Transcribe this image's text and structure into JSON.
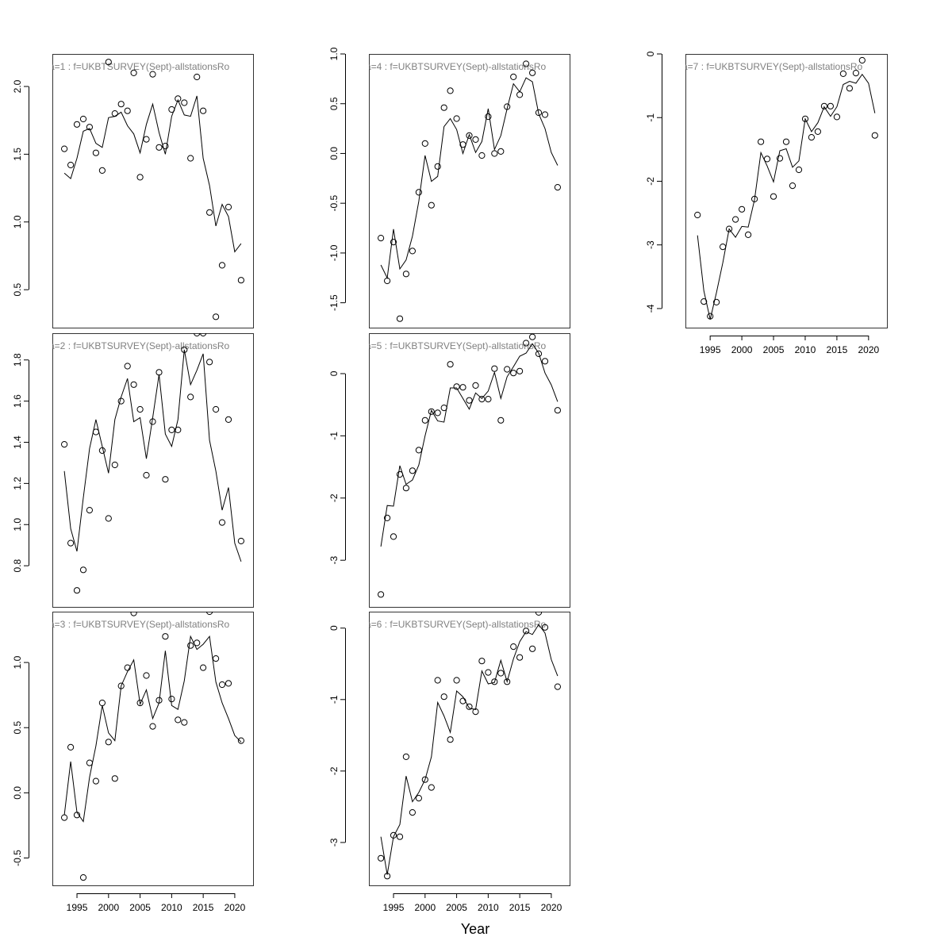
{
  "figure": {
    "xlabel": "Year"
  },
  "chart_data": [
    {
      "type": "scatter",
      "title": "a=1  :  f=UKBTSURVEY(Sept)-allstationsRo",
      "xlim": [
        1991.1,
        2022.9
      ],
      "ylim": [
        0.22,
        2.24
      ],
      "yticks": [
        0.5,
        1.0,
        1.5,
        2.0
      ],
      "yticklabels": [
        "0.5",
        "1.0",
        "1.5",
        "2.0"
      ],
      "xticks": [],
      "xticklabels": [],
      "years": [
        1993,
        1994,
        1995,
        1996,
        1997,
        1998,
        1999,
        2000,
        2001,
        2002,
        2003,
        2004,
        2005,
        2006,
        2007,
        2008,
        2009,
        2010,
        2011,
        2012,
        2013,
        2014,
        2015,
        2016,
        2017,
        2018,
        2019,
        2020,
        2021
      ],
      "series": [
        {
          "kind": "points",
          "values": [
            1.54,
            1.42,
            1.72,
            1.76,
            1.7,
            1.51,
            1.38,
            2.18,
            1.8,
            1.87,
            1.82,
            2.1,
            1.33,
            1.61,
            2.09,
            1.55,
            1.56,
            1.83,
            1.91,
            1.88,
            1.47,
            2.07,
            1.82,
            1.07,
            0.3,
            0.68,
            1.11,
            null,
            0.57
          ]
        },
        {
          "kind": "line",
          "values": [
            1.36,
            1.32,
            1.47,
            1.67,
            1.69,
            1.58,
            1.55,
            1.77,
            1.78,
            1.81,
            1.71,
            1.65,
            1.51,
            1.72,
            1.87,
            1.66,
            1.5,
            1.78,
            1.9,
            1.79,
            1.78,
            1.93,
            1.47,
            1.27,
            0.97,
            1.13,
            1.04,
            0.78,
            0.84
          ]
        }
      ]
    },
    {
      "type": "scatter",
      "title": "a=2  :  f=UKBTSURVEY(Sept)-allstationsRo",
      "xlim": [
        1991.1,
        2022.9
      ],
      "ylim": [
        0.6,
        1.93
      ],
      "yticks": [
        0.8,
        1.0,
        1.2,
        1.4,
        1.6,
        1.8
      ],
      "yticklabels": [
        "0.8",
        "1.0",
        "1.2",
        "1.4",
        "1.6",
        "1.8"
      ],
      "xticks": [],
      "xticklabels": [],
      "years": [
        1993,
        1994,
        1995,
        1996,
        1997,
        1998,
        1999,
        2000,
        2001,
        2002,
        2003,
        2004,
        2005,
        2006,
        2007,
        2008,
        2009,
        2010,
        2011,
        2012,
        2013,
        2014,
        2015,
        2016,
        2017,
        2018,
        2019,
        2020,
        2021
      ],
      "series": [
        {
          "kind": "points",
          "values": [
            1.39,
            0.91,
            0.68,
            0.78,
            1.07,
            1.45,
            1.36,
            1.03,
            1.29,
            1.6,
            1.77,
            1.68,
            1.56,
            1.24,
            1.5,
            1.74,
            1.22,
            1.46,
            1.46,
            1.85,
            1.62,
            1.93,
            1.93,
            1.79,
            1.56,
            1.01,
            1.51,
            null,
            0.92
          ]
        },
        {
          "kind": "line",
          "values": [
            1.26,
            0.98,
            0.87,
            1.13,
            1.37,
            1.51,
            1.38,
            1.25,
            1.51,
            1.62,
            1.71,
            1.5,
            1.52,
            1.32,
            1.52,
            1.73,
            1.44,
            1.38,
            1.51,
            1.85,
            1.68,
            1.75,
            1.83,
            1.41,
            1.26,
            1.07,
            1.18,
            0.91,
            0.82
          ]
        }
      ]
    },
    {
      "type": "scatter",
      "title": "a=3  :  f=UKBTSURVEY(Sept)-allstationsRo",
      "xlim": [
        1991.1,
        2022.9
      ],
      "ylim": [
        -0.71,
        1.39
      ],
      "yticks": [
        -0.5,
        0.0,
        0.5,
        1.0
      ],
      "yticklabels": [
        "-0.5",
        "0.0",
        "0.5",
        "1.0"
      ],
      "xticks": [
        1995,
        2000,
        2005,
        2010,
        2015,
        2020
      ],
      "xticklabels": [
        "1995",
        "2000",
        "2005",
        "2010",
        "2015",
        "2020"
      ],
      "years": [
        1993,
        1994,
        1995,
        1996,
        1997,
        1998,
        1999,
        2000,
        2001,
        2002,
        2003,
        2004,
        2005,
        2006,
        2007,
        2008,
        2009,
        2010,
        2011,
        2012,
        2013,
        2014,
        2015,
        2016,
        2017,
        2018,
        2019,
        2020,
        2021
      ],
      "series": [
        {
          "kind": "points",
          "values": [
            -0.19,
            0.35,
            -0.17,
            -0.65,
            0.23,
            0.09,
            0.69,
            0.39,
            0.11,
            0.82,
            0.96,
            1.38,
            0.69,
            0.9,
            0.51,
            0.71,
            1.2,
            0.72,
            0.56,
            0.54,
            1.13,
            1.15,
            0.96,
            1.39,
            1.03,
            0.83,
            0.84,
            null,
            0.4
          ]
        },
        {
          "kind": "line",
          "values": [
            -0.17,
            0.24,
            -0.15,
            -0.22,
            0.12,
            0.36,
            0.67,
            0.46,
            0.4,
            0.82,
            0.93,
            1.02,
            0.68,
            0.79,
            0.57,
            0.69,
            1.09,
            0.67,
            0.64,
            0.86,
            1.2,
            1.1,
            1.14,
            1.2,
            0.85,
            0.69,
            0.57,
            0.44,
            0.39
          ]
        }
      ]
    },
    {
      "type": "scatter",
      "title": "a=4  :  f=UKBTSURVEY(Sept)-allstationsRo",
      "xlim": [
        1991.1,
        2022.9
      ],
      "ylim": [
        -1.75,
        1.0
      ],
      "yticks": [
        -1.5,
        -1.0,
        -0.5,
        0.0,
        0.5,
        1.0
      ],
      "yticklabels": [
        "-1.5",
        "-1.0",
        "-0.5",
        "0.0",
        "0.5",
        "1.0"
      ],
      "xticks": [],
      "xticklabels": [],
      "years": [
        1993,
        1994,
        1995,
        1996,
        1997,
        1998,
        1999,
        2000,
        2001,
        2002,
        2003,
        2004,
        2005,
        2006,
        2007,
        2008,
        2009,
        2010,
        2011,
        2012,
        2013,
        2014,
        2015,
        2016,
        2017,
        2018,
        2019,
        2020,
        2021
      ],
      "series": [
        {
          "kind": "points",
          "values": [
            -0.85,
            -1.28,
            -0.89,
            -1.66,
            -1.21,
            -0.98,
            -0.39,
            0.1,
            -0.52,
            -0.13,
            0.46,
            0.63,
            0.35,
            0.09,
            0.18,
            0.14,
            -0.02,
            0.37,
            0.0,
            0.02,
            0.47,
            0.77,
            0.59,
            0.9,
            0.81,
            0.41,
            0.39,
            null,
            -0.34
          ]
        },
        {
          "kind": "line",
          "values": [
            -1.12,
            -1.25,
            -0.76,
            -1.16,
            -1.07,
            -0.83,
            -0.48,
            -0.02,
            -0.28,
            -0.23,
            0.27,
            0.35,
            0.24,
            0.0,
            0.19,
            0.01,
            0.12,
            0.45,
            0.04,
            0.18,
            0.45,
            0.7,
            0.62,
            0.76,
            0.72,
            0.4,
            0.25,
            0.01,
            -0.12
          ]
        }
      ]
    },
    {
      "type": "scatter",
      "title": "a=5  :  f=UKBTSURVEY(Sept)-allstationsRo",
      "xlim": [
        1991.1,
        2022.9
      ],
      "ylim": [
        -3.75,
        0.65
      ],
      "yticks": [
        -3,
        -2,
        -1,
        0
      ],
      "yticklabels": [
        "-3",
        "-2",
        "-1",
        "0"
      ],
      "xticks": [],
      "xticklabels": [],
      "years": [
        1993,
        1994,
        1995,
        1996,
        1997,
        1998,
        1999,
        2000,
        2001,
        2002,
        2003,
        2004,
        2005,
        2006,
        2007,
        2008,
        2009,
        2010,
        2011,
        2012,
        2013,
        2014,
        2015,
        2016,
        2017,
        2018,
        2019,
        2020,
        2021
      ],
      "series": [
        {
          "kind": "points",
          "values": [
            -3.55,
            -2.32,
            -2.62,
            -1.62,
            -1.84,
            -1.56,
            -1.23,
            -0.75,
            -0.61,
            -0.63,
            -0.55,
            0.15,
            -0.21,
            -0.22,
            -0.43,
            -0.19,
            -0.41,
            -0.41,
            0.08,
            -0.75,
            0.07,
            0.01,
            0.04,
            0.49,
            0.59,
            0.32,
            0.2,
            null,
            -0.59
          ]
        },
        {
          "kind": "line",
          "values": [
            -2.78,
            -2.12,
            -2.13,
            -1.48,
            -1.78,
            -1.71,
            -1.47,
            -1.0,
            -0.59,
            -0.76,
            -0.78,
            -0.23,
            -0.23,
            -0.4,
            -0.57,
            -0.31,
            -0.4,
            -0.28,
            0.02,
            -0.4,
            -0.05,
            0.11,
            0.28,
            0.33,
            0.48,
            0.33,
            0.01,
            -0.18,
            -0.45
          ]
        }
      ]
    },
    {
      "type": "scatter",
      "title": "a=6  :  f=UKBTSURVEY(Sept)-allstationsRo",
      "xlim": [
        1991.1,
        2022.9
      ],
      "ylim": [
        -3.6,
        0.23
      ],
      "yticks": [
        -3,
        -2,
        -1,
        0
      ],
      "yticklabels": [
        "-3",
        "-2",
        "-1",
        "0"
      ],
      "xticks": [
        1995,
        2000,
        2005,
        2010,
        2015,
        2020
      ],
      "xticklabels": [
        "1995",
        "2000",
        "2005",
        "2010",
        "2015",
        "2020"
      ],
      "years": [
        1993,
        1994,
        1995,
        1996,
        1997,
        1998,
        1999,
        2000,
        2001,
        2002,
        2003,
        2004,
        2005,
        2006,
        2007,
        2008,
        2009,
        2010,
        2011,
        2012,
        2013,
        2014,
        2015,
        2016,
        2017,
        2018,
        2019,
        2020,
        2021
      ],
      "series": [
        {
          "kind": "points",
          "values": [
            -3.22,
            -3.47,
            -2.9,
            -2.92,
            -1.8,
            -2.58,
            -2.38,
            -2.12,
            -2.23,
            -0.73,
            -0.96,
            -1.56,
            -0.73,
            -1.02,
            -1.1,
            -1.17,
            -0.46,
            -0.62,
            -0.75,
            -0.63,
            -0.75,
            -0.26,
            -0.41,
            -0.04,
            -0.29,
            0.22,
            0.01,
            null,
            -0.82
          ]
        },
        {
          "kind": "line",
          "values": [
            -2.92,
            -3.45,
            -2.92,
            -2.75,
            -2.07,
            -2.43,
            -2.3,
            -2.12,
            -1.8,
            -1.04,
            -1.23,
            -1.46,
            -0.88,
            -0.96,
            -1.12,
            -1.14,
            -0.6,
            -0.78,
            -0.76,
            -0.45,
            -0.75,
            -0.43,
            -0.19,
            -0.05,
            -0.09,
            0.05,
            -0.07,
            -0.44,
            -0.67
          ]
        }
      ]
    },
    {
      "type": "scatter",
      "title": "a=7  :  f=UKBTSURVEY(Sept)-allstationsRo",
      "xlim": [
        1991.1,
        2022.9
      ],
      "ylim": [
        -4.3,
        0.0
      ],
      "yticks": [
        -4,
        -3,
        -2,
        -1,
        0
      ],
      "yticklabels": [
        "-4",
        "-3",
        "-2",
        "-1",
        "0"
      ],
      "xticks": [
        1995,
        2000,
        2005,
        2010,
        2015,
        2020
      ],
      "xticklabels": [
        "1995",
        "2000",
        "2005",
        "2010",
        "2015",
        "2020"
      ],
      "years": [
        1993,
        1994,
        1995,
        1996,
        1997,
        1998,
        1999,
        2000,
        2001,
        2002,
        2003,
        2004,
        2005,
        2006,
        2007,
        2008,
        2009,
        2010,
        2011,
        2012,
        2013,
        2014,
        2015,
        2016,
        2017,
        2018,
        2019,
        2020,
        2021
      ],
      "series": [
        {
          "kind": "points",
          "values": [
            -2.53,
            -3.89,
            -4.12,
            -3.9,
            -3.03,
            -2.75,
            -2.6,
            -2.44,
            -2.84,
            -2.28,
            -1.38,
            -1.65,
            -2.24,
            -1.64,
            -1.38,
            -2.07,
            -1.82,
            -1.02,
            -1.31,
            -1.22,
            -0.82,
            -0.82,
            -0.99,
            -0.31,
            -0.54,
            -0.3,
            -0.1,
            null,
            -1.28
          ]
        },
        {
          "kind": "line",
          "values": [
            -2.85,
            -3.72,
            -4.17,
            -3.75,
            -3.28,
            -2.75,
            -2.88,
            -2.71,
            -2.72,
            -2.29,
            -1.55,
            -1.76,
            -2.01,
            -1.52,
            -1.49,
            -1.78,
            -1.68,
            -1.02,
            -1.22,
            -1.08,
            -0.83,
            -0.98,
            -0.83,
            -0.48,
            -0.43,
            -0.46,
            -0.32,
            -0.46,
            -0.93
          ]
        }
      ]
    }
  ]
}
